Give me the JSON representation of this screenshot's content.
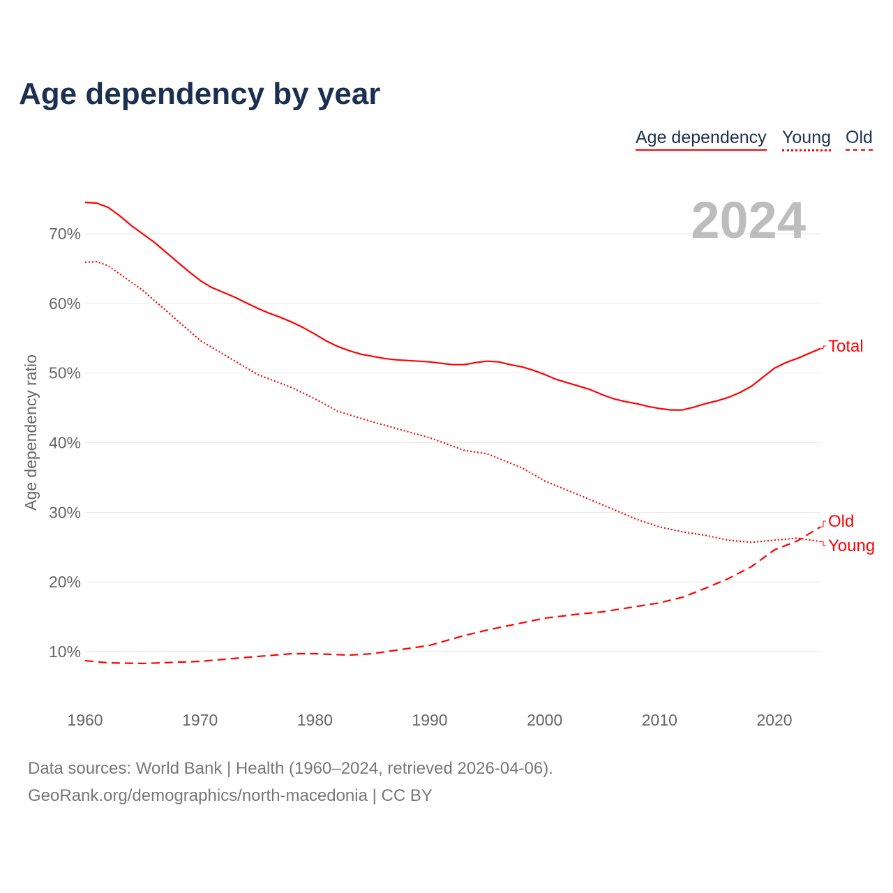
{
  "chart_data": {
    "type": "line",
    "title": "Age dependency by year",
    "ylabel": "Age dependency ratio",
    "xlabel": "",
    "year_label": "2024",
    "xlim": [
      1960,
      2024
    ],
    "ylim": [
      4,
      78
    ],
    "xticks": [
      1960,
      1970,
      1980,
      1990,
      2000,
      2010,
      2020
    ],
    "yticks": [
      10,
      20,
      30,
      40,
      50,
      60,
      70
    ],
    "ytick_labels": [
      "10%",
      "20%",
      "30%",
      "40%",
      "50%",
      "60%",
      "70%"
    ],
    "legend": [
      "Age dependency",
      "Young",
      "Old"
    ],
    "legend_position": "top-right",
    "series": [
      {
        "name": "Total",
        "legend": "Age dependency",
        "style": "solid",
        "color": "#ff0000",
        "x": [
          1960,
          1961,
          1962,
          1963,
          1964,
          1965,
          1966,
          1967,
          1968,
          1969,
          1970,
          1971,
          1972,
          1973,
          1974,
          1975,
          1976,
          1977,
          1978,
          1979,
          1980,
          1981,
          1982,
          1983,
          1984,
          1985,
          1986,
          1987,
          1988,
          1989,
          1990,
          1991,
          1992,
          1993,
          1994,
          1995,
          1996,
          1997,
          1998,
          1999,
          2000,
          2001,
          2002,
          2003,
          2004,
          2005,
          2006,
          2007,
          2008,
          2009,
          2010,
          2011,
          2012,
          2013,
          2014,
          2015,
          2016,
          2017,
          2018,
          2019,
          2020,
          2021,
          2022,
          2023,
          2024
        ],
        "y": [
          74.5,
          74.4,
          73.8,
          72.6,
          71.2,
          70.0,
          68.8,
          67.4,
          66.0,
          64.6,
          63.3,
          62.3,
          61.6,
          60.9,
          60.1,
          59.3,
          58.6,
          58.0,
          57.3,
          56.5,
          55.6,
          54.6,
          53.8,
          53.2,
          52.7,
          52.4,
          52.1,
          51.9,
          51.8,
          51.7,
          51.6,
          51.4,
          51.2,
          51.2,
          51.5,
          51.7,
          51.6,
          51.2,
          50.9,
          50.4,
          49.8,
          49.1,
          48.6,
          48.1,
          47.6,
          46.9,
          46.3,
          45.9,
          45.6,
          45.2,
          44.9,
          44.7,
          44.7,
          45.1,
          45.6,
          46.0,
          46.5,
          47.2,
          48.1,
          49.4,
          50.7,
          51.5,
          52.1,
          52.8,
          53.5
        ]
      },
      {
        "name": "Young",
        "legend": "Young",
        "style": "dotted",
        "color": "#ff0000",
        "x": [
          1960,
          1961,
          1962,
          1965,
          1970,
          1975,
          1978,
          1980,
          1982,
          1985,
          1990,
          1993,
          1995,
          1998,
          2000,
          2004,
          2006,
          2008,
          2010,
          2012,
          2014,
          2016,
          2018,
          2020,
          2022,
          2024
        ],
        "y": [
          65.9,
          66.0,
          65.4,
          61.9,
          54.7,
          49.8,
          47.9,
          46.3,
          44.5,
          43.0,
          40.7,
          38.9,
          38.4,
          36.4,
          34.5,
          31.8,
          30.4,
          29.0,
          27.9,
          27.2,
          26.7,
          26.0,
          25.7,
          26.0,
          26.3,
          25.8
        ]
      },
      {
        "name": "Old",
        "legend": "Old",
        "style": "dashed",
        "color": "#ff0000",
        "x": [
          1960,
          1962,
          1965,
          1970,
          1975,
          1978,
          1980,
          1983,
          1985,
          1990,
          1993,
          1995,
          2000,
          2003,
          2005,
          2010,
          2012,
          2014,
          2016,
          2018,
          2020,
          2022,
          2024
        ],
        "y": [
          8.7,
          8.4,
          8.3,
          8.6,
          9.3,
          9.7,
          9.7,
          9.5,
          9.7,
          10.9,
          12.3,
          13.1,
          14.8,
          15.4,
          15.7,
          17.0,
          17.8,
          19.1,
          20.5,
          22.2,
          24.6,
          25.9,
          27.9
        ]
      }
    ]
  },
  "footer": {
    "line1": "Data sources: World Bank | Health (1960–2024, retrieved 2026-04-06).",
    "line2": "GeoRank.org/demographics/north-macedonia | CC BY"
  }
}
